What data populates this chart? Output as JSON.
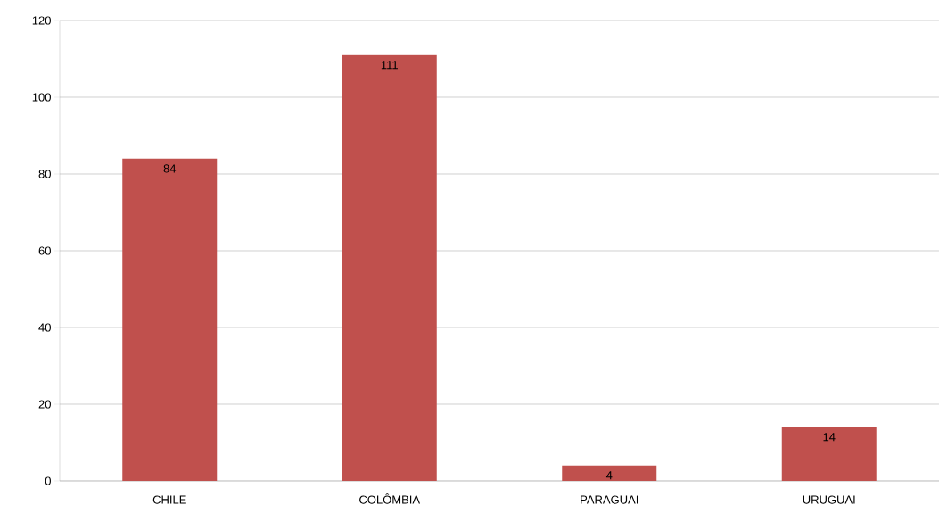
{
  "chart_data": {
    "type": "bar",
    "categories": [
      "CHILE",
      "COLÔMBIA",
      "PARAGUAI",
      "URUGUAI"
    ],
    "values": [
      84,
      111,
      4,
      14
    ],
    "color": "#c0504d",
    "ylim": [
      0,
      120
    ],
    "yticks": [
      0,
      20,
      40,
      60,
      80,
      100,
      120
    ],
    "grid": "y",
    "data_labels": true
  }
}
